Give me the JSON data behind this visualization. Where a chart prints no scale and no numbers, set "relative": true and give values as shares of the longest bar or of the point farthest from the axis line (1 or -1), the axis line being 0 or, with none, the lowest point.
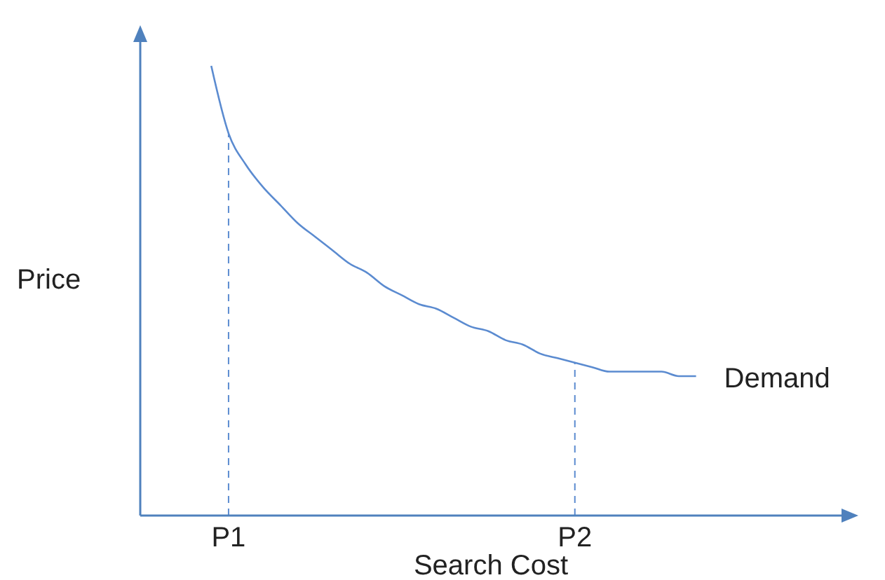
{
  "chart_data": {
    "type": "line",
    "relative": true,
    "xlabel": "Search Cost",
    "ylabel": "Price",
    "categories": [
      null,
      "P1",
      null,
      null,
      null,
      null,
      null,
      null,
      null,
      null,
      null,
      null,
      null,
      null,
      null,
      null,
      null,
      null,
      null,
      null,
      null,
      "P2",
      null,
      null,
      null,
      null,
      null,
      null,
      null
    ],
    "series": [
      {
        "name": "Demand",
        "color": "#5b8bd0",
        "values": [
          1.0,
          0.85,
          0.78,
          0.73,
          0.69,
          0.65,
          0.62,
          0.59,
          0.56,
          0.54,
          0.51,
          0.49,
          0.47,
          0.46,
          0.44,
          0.42,
          0.41,
          0.39,
          0.38,
          0.36,
          0.35,
          0.34,
          0.33,
          0.32,
          0.32,
          0.32,
          0.32,
          0.31,
          0.31
        ]
      }
    ],
    "ref_lines": [
      {
        "axis": "x",
        "value": "P1",
        "color": "#5b8bd0",
        "line_style": "dashed"
      },
      {
        "axis": "x",
        "value": "P2",
        "color": "#5b8bd0",
        "line_style": "dashed"
      }
    ],
    "grid": false,
    "legend": false,
    "marker": "none",
    "line_style": "solid"
  }
}
